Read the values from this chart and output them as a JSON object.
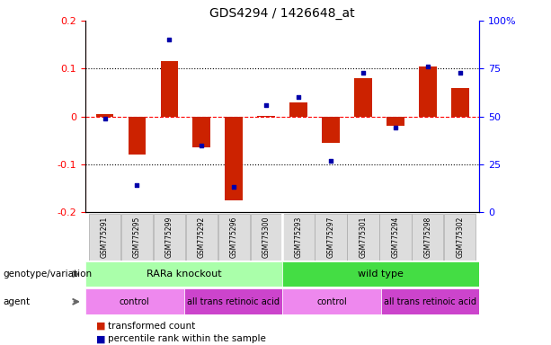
{
  "title": "GDS4294 / 1426648_at",
  "samples": [
    "GSM775291",
    "GSM775295",
    "GSM775299",
    "GSM775292",
    "GSM775296",
    "GSM775300",
    "GSM775293",
    "GSM775297",
    "GSM775301",
    "GSM775294",
    "GSM775298",
    "GSM775302"
  ],
  "red_bars": [
    0.005,
    -0.08,
    0.115,
    -0.065,
    -0.175,
    0.002,
    0.03,
    -0.055,
    0.08,
    -0.02,
    0.105,
    0.06
  ],
  "blue_dots": [
    49,
    14,
    90,
    35,
    13,
    56,
    60,
    27,
    73,
    44,
    76,
    73
  ],
  "ylim_left": [
    -0.2,
    0.2
  ],
  "ylim_right": [
    0,
    100
  ],
  "yticks_left": [
    -0.2,
    -0.1,
    0.0,
    0.1,
    0.2
  ],
  "ytick_labels_left": [
    "-0.2",
    "-0.1",
    "0",
    "0.1",
    "0.2"
  ],
  "yticks_right": [
    0,
    25,
    50,
    75,
    100
  ],
  "ytick_labels_right": [
    "0",
    "25",
    "50",
    "75",
    "100%"
  ],
  "hline_y": 0.0,
  "dotted_lines": [
    -0.1,
    0.1
  ],
  "genotype_groups": [
    {
      "label": "RARa knockout",
      "start": 0,
      "end": 6,
      "color": "#AAFFAA"
    },
    {
      "label": "wild type",
      "start": 6,
      "end": 12,
      "color": "#44DD44"
    }
  ],
  "agent_groups": [
    {
      "label": "control",
      "start": 0,
      "end": 3,
      "color": "#EE88EE"
    },
    {
      "label": "all trans retinoic acid",
      "start": 3,
      "end": 6,
      "color": "#CC44CC"
    },
    {
      "label": "control",
      "start": 6,
      "end": 9,
      "color": "#EE88EE"
    },
    {
      "label": "all trans retinoic acid",
      "start": 9,
      "end": 12,
      "color": "#CC44CC"
    }
  ],
  "legend_items": [
    {
      "label": "transformed count",
      "color": "#CC2200"
    },
    {
      "label": "percentile rank within the sample",
      "color": "#0000AA"
    }
  ],
  "bar_color": "#CC2200",
  "dot_color": "#0000AA",
  "bar_width": 0.55,
  "genotype_label": "genotype/variation",
  "agent_label": "agent"
}
